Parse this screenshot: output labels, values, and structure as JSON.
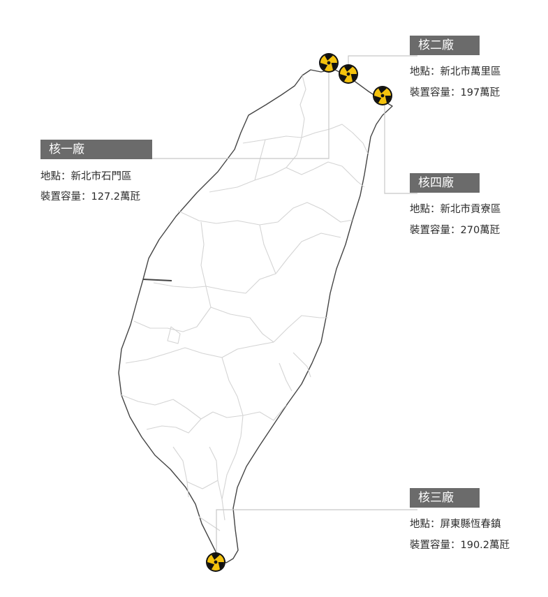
{
  "plants": [
    {
      "id": "plant-1",
      "name": "核一廠",
      "location": "地點：新北市石門區",
      "capacity": "裝置容量：127.2萬瓩"
    },
    {
      "id": "plant-2",
      "name": "核二廠",
      "location": "地點：新北市萬里區",
      "capacity": "裝置容量：197萬瓩"
    },
    {
      "id": "plant-4",
      "name": "核四廠",
      "location": "地點：新北市貢寮區",
      "capacity": "裝置容量：270萬瓩"
    },
    {
      "id": "plant-3",
      "name": "核三廠",
      "location": "地點：屏東縣恆春鎮",
      "capacity": "裝置容量：190.2萬瓩"
    }
  ],
  "colors": {
    "label_background": "#6b6b6b",
    "label_text": "#ffffff",
    "coast": "#444444",
    "county_borders": "#d4d4d4",
    "leader_lines": "#c8c8c8",
    "radiation_yellow": "#f4c20d",
    "radiation_black": "#111111"
  },
  "icons": {
    "plant_marker": "radiation-trefoil-icon"
  }
}
